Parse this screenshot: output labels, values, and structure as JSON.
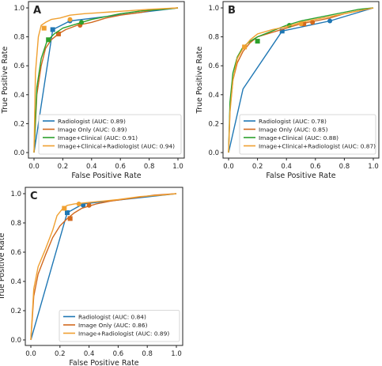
{
  "chart_data": [
    {
      "type": "line",
      "panel_label": "A",
      "xlabel": "False Positive Rate",
      "ylabel": "True Positive Rate",
      "xlim": [
        0,
        1
      ],
      "ylim": [
        0,
        1
      ],
      "x_ticks": [
        "0.0",
        "0.2",
        "0.4",
        "0.6",
        "0.8",
        "1.0"
      ],
      "y_ticks": [
        "0.0",
        "0.2",
        "0.4",
        "0.6",
        "0.8",
        "1.0"
      ],
      "grid": false,
      "legend_position": "lower-right",
      "series": [
        {
          "name": "Radiologist (AUC: 0.89)",
          "color": "#1f77b4",
          "x": [
            0,
            0.13,
            0.25,
            1
          ],
          "y": [
            0,
            0.85,
            0.91,
            1
          ],
          "markers": [
            [
              0.13,
              0.85
            ],
            [
              0.25,
              0.91
            ]
          ]
        },
        {
          "name": "Image Only (AUC: 0.89)",
          "color": "#d2691e",
          "x": [
            0,
            0.02,
            0.05,
            0.08,
            0.12,
            0.17,
            0.22,
            0.3,
            0.4,
            0.5,
            0.6,
            0.75,
            0.85,
            1
          ],
          "y": [
            0,
            0.4,
            0.6,
            0.72,
            0.78,
            0.82,
            0.85,
            0.88,
            0.9,
            0.93,
            0.95,
            0.97,
            0.99,
            1
          ],
          "markers": [
            [
              0.17,
              0.82
            ],
            [
              0.32,
              0.88
            ]
          ]
        },
        {
          "name": "Image+Clinical (AUC: 0.91)",
          "color": "#2ca02c",
          "x": [
            0,
            0.02,
            0.05,
            0.09,
            0.14,
            0.2,
            0.3,
            0.4,
            0.5,
            0.6,
            0.75,
            0.9,
            1
          ],
          "y": [
            0,
            0.45,
            0.65,
            0.77,
            0.82,
            0.86,
            0.89,
            0.92,
            0.94,
            0.96,
            0.98,
            0.99,
            1
          ],
          "markers": [
            [
              0.1,
              0.78
            ],
            [
              0.33,
              0.9
            ]
          ]
        },
        {
          "name": "Image+Clinical+Radiologist (AUC: 0.94)",
          "color": "#f0a030",
          "x": [
            0,
            0.01,
            0.03,
            0.05,
            0.08,
            0.12,
            0.18,
            0.25,
            0.35,
            0.5,
            0.65,
            0.8,
            1
          ],
          "y": [
            0,
            0.55,
            0.8,
            0.88,
            0.9,
            0.92,
            0.93,
            0.95,
            0.96,
            0.97,
            0.98,
            0.99,
            1
          ],
          "markers": [
            [
              0.07,
              0.86
            ],
            [
              0.25,
              0.92
            ]
          ]
        }
      ]
    },
    {
      "type": "line",
      "panel_label": "B",
      "xlabel": "False Positive Rate",
      "ylabel": "True Positive Rate",
      "xlim": [
        0,
        1
      ],
      "ylim": [
        0,
        1
      ],
      "x_ticks": [
        "0.0",
        "0.2",
        "0.4",
        "0.6",
        "0.8",
        "1.0"
      ],
      "y_ticks": [
        "0.0",
        "0.2",
        "0.4",
        "0.6",
        "0.8",
        "1.0"
      ],
      "grid": false,
      "legend_position": "lower-right",
      "series": [
        {
          "name": "Radiologist (AUC: 0.78)",
          "color": "#1f77b4",
          "x": [
            0,
            0.1,
            0.37,
            0.7,
            1
          ],
          "y": [
            0,
            0.44,
            0.84,
            0.91,
            1
          ],
          "markers": [
            [
              0.37,
              0.84
            ],
            [
              0.7,
              0.91
            ]
          ]
        },
        {
          "name": "Image Only (AUC: 0.85)",
          "color": "#d2691e",
          "x": [
            0,
            0.01,
            0.03,
            0.06,
            0.1,
            0.15,
            0.2,
            0.3,
            0.4,
            0.5,
            0.6,
            0.7,
            0.8,
            0.9,
            1
          ],
          "y": [
            0,
            0.3,
            0.5,
            0.62,
            0.7,
            0.76,
            0.8,
            0.83,
            0.86,
            0.89,
            0.91,
            0.93,
            0.96,
            0.98,
            1
          ],
          "markers": [
            [
              0.52,
              0.89
            ],
            [
              0.58,
              0.9
            ]
          ]
        },
        {
          "name": "Image+Clinical (AUC: 0.88)",
          "color": "#2ca02c",
          "x": [
            0,
            0.01,
            0.03,
            0.06,
            0.1,
            0.15,
            0.2,
            0.3,
            0.4,
            0.5,
            0.6,
            0.7,
            0.8,
            0.9,
            1
          ],
          "y": [
            0,
            0.35,
            0.55,
            0.66,
            0.73,
            0.77,
            0.8,
            0.84,
            0.88,
            0.91,
            0.93,
            0.95,
            0.97,
            0.99,
            1
          ],
          "markers": [
            [
              0.2,
              0.77
            ],
            [
              0.42,
              0.88
            ]
          ]
        },
        {
          "name": "Image+Clinical+Radiologist (AUC: 0.87)",
          "color": "#f0a030",
          "x": [
            0,
            0.01,
            0.03,
            0.06,
            0.1,
            0.15,
            0.2,
            0.3,
            0.4,
            0.5,
            0.6,
            0.7,
            0.8,
            0.9,
            1
          ],
          "y": [
            0,
            0.28,
            0.5,
            0.65,
            0.72,
            0.78,
            0.82,
            0.85,
            0.87,
            0.9,
            0.92,
            0.94,
            0.96,
            0.98,
            1
          ],
          "markers": [
            [
              0.11,
              0.73
            ],
            [
              0.5,
              0.89
            ]
          ]
        }
      ]
    },
    {
      "type": "line",
      "panel_label": "C",
      "xlabel": "False Positive Rate",
      "ylabel": "True Positive Rate",
      "xlim": [
        0,
        1
      ],
      "ylim": [
        0,
        1
      ],
      "x_ticks": [
        "0.0",
        "0.2",
        "0.4",
        "0.6",
        "0.8",
        "1.0"
      ],
      "y_ticks": [
        "0.0",
        "0.2",
        "0.4",
        "0.6",
        "0.8",
        "1.0"
      ],
      "grid": false,
      "legend_position": "lower-right",
      "series": [
        {
          "name": "Radiologist (AUC: 0.84)",
          "color": "#1f77b4",
          "x": [
            0,
            0.25,
            0.36,
            1
          ],
          "y": [
            0,
            0.87,
            0.93,
            1
          ],
          "markers": [
            [
              0.25,
              0.87
            ],
            [
              0.36,
              0.92
            ]
          ]
        },
        {
          "name": "Image Only (AUC: 0.86)",
          "color": "#d2691e",
          "x": [
            0,
            0.02,
            0.05,
            0.1,
            0.15,
            0.2,
            0.25,
            0.3,
            0.35,
            0.45,
            0.55,
            0.7,
            0.85,
            1
          ],
          "y": [
            0,
            0.3,
            0.45,
            0.58,
            0.7,
            0.78,
            0.83,
            0.87,
            0.9,
            0.93,
            0.95,
            0.97,
            0.99,
            1
          ],
          "markers": [
            [
              0.27,
              0.83
            ],
            [
              0.4,
              0.92
            ]
          ]
        },
        {
          "name": "Image+Radiologist (AUC: 0.89)",
          "color": "#f0a030",
          "x": [
            0,
            0.02,
            0.05,
            0.1,
            0.15,
            0.18,
            0.22,
            0.25,
            0.3,
            0.4,
            0.5,
            0.6,
            0.75,
            0.9,
            1
          ],
          "y": [
            0,
            0.35,
            0.5,
            0.62,
            0.75,
            0.85,
            0.9,
            0.92,
            0.93,
            0.94,
            0.95,
            0.96,
            0.98,
            0.99,
            1
          ],
          "markers": [
            [
              0.23,
              0.9
            ],
            [
              0.33,
              0.93
            ]
          ]
        }
      ]
    }
  ]
}
